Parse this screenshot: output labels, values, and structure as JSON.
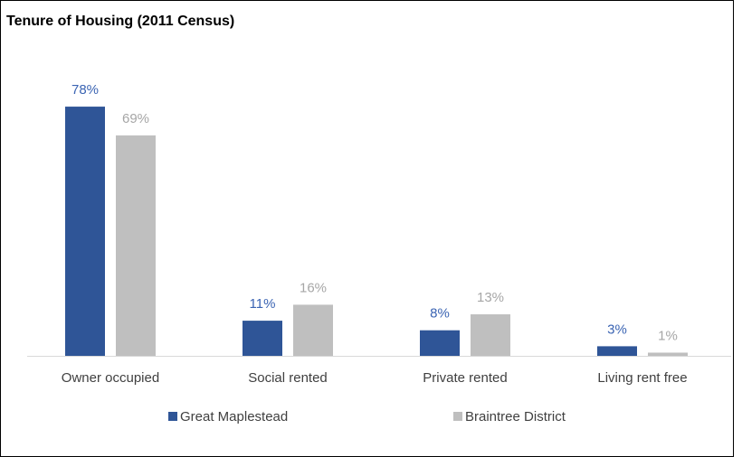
{
  "chart_data": {
    "type": "bar",
    "title": "Tenure of Housing (2011 Census)",
    "categories": [
      "Owner occupied",
      "Social rented",
      "Private rented",
      "Living rent free"
    ],
    "series": [
      {
        "name": "Great Maplestead",
        "color": "#2f5597",
        "label_color": "#3b64b3",
        "values": [
          78,
          11,
          8,
          3
        ],
        "value_labels": [
          "78%",
          "11%",
          "8%",
          "3%"
        ]
      },
      {
        "name": "Braintree District",
        "color": "#bfbfbf",
        "label_color": "#a6a6a6",
        "values": [
          69,
          16,
          13,
          1
        ],
        "value_labels": [
          "69%",
          "16%",
          "13%",
          "1%"
        ]
      }
    ],
    "ylim": [
      0,
      80
    ]
  }
}
